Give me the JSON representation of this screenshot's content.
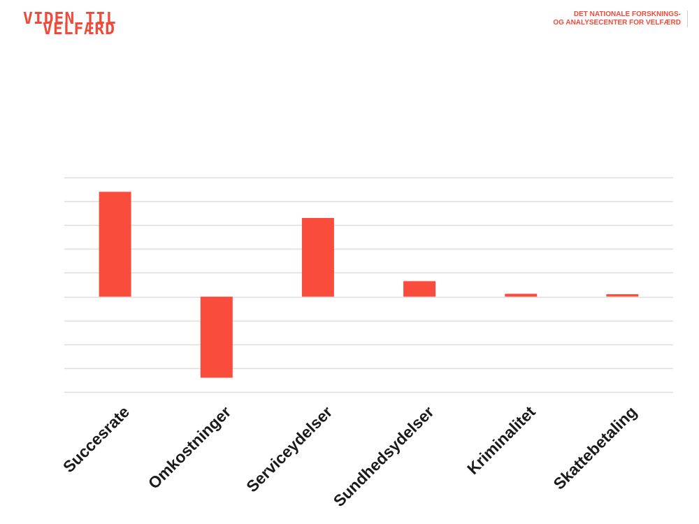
{
  "header": {
    "logo_line1": "VIDEN TIL",
    "logo_line2": "VELFÆRD",
    "org_line1": "DET NATIONALE FORSKNINGS-",
    "org_line2": "OG ANALYSECENTER FOR VELFÆRD",
    "brand_color": "#f04a3a"
  },
  "chart_data": {
    "type": "bar",
    "title": "",
    "xlabel": "",
    "ylabel": "",
    "categories": [
      "Succesrate",
      "Omkostninger",
      "Serviceydelser",
      "Sundhedsydelser",
      "Kriminalitet",
      "Skattebetaling"
    ],
    "values": [
      4.4,
      -3.4,
      3.3,
      0.65,
      0.12,
      0.1
    ],
    "ylim": [
      -4,
      5
    ],
    "grid": true,
    "gridline_count": 10,
    "y_tick_labels_shown": false,
    "bar_color": "#f94c3c",
    "grid_color": "#dddddd"
  }
}
